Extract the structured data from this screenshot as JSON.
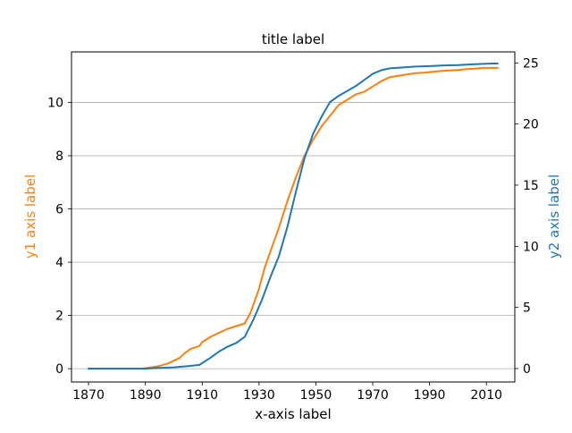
{
  "chart_data": {
    "type": "line",
    "title": "title label",
    "xlabel": "x-axis label",
    "ylabel_left": "y1 axis label",
    "ylabel_right": "y2 axis label",
    "xlim": [
      1864,
      2020
    ],
    "ylim_left": [
      -0.5,
      11.9
    ],
    "ylim_right": [
      -1.1,
      25.9
    ],
    "xticks": [
      1870,
      1890,
      1910,
      1930,
      1950,
      1970,
      1990,
      2010
    ],
    "yticks_left": [
      0,
      2,
      4,
      6,
      8,
      10
    ],
    "yticks_right": [
      0,
      5,
      10,
      15,
      20,
      25
    ],
    "grid": "horizontal lines at left y-axis ticks",
    "colors": {
      "left_series": "#ff7f0e",
      "right_series": "#1f77b4",
      "grid": "#b0b0b0"
    },
    "series": [
      {
        "axis": "left",
        "x": [
          1870,
          1880,
          1889,
          1892,
          1895,
          1898,
          1900,
          1902,
          1904,
          1906,
          1909,
          1910,
          1913,
          1916,
          1919,
          1922,
          1925,
          1927,
          1930,
          1932,
          1935,
          1937,
          1940,
          1943,
          1946,
          1949,
          1952,
          1955,
          1958,
          1961,
          1964,
          1967,
          1970,
          1973,
          1976,
          1979,
          1982,
          1985,
          1988,
          1991,
          1994,
          1997,
          2000,
          2003,
          2006,
          2009,
          2012,
          2014
        ],
        "y": [
          0.0,
          0.0,
          0.0,
          0.05,
          0.1,
          0.2,
          0.3,
          0.4,
          0.6,
          0.75,
          0.85,
          1.0,
          1.2,
          1.35,
          1.5,
          1.6,
          1.7,
          2.1,
          3.0,
          3.8,
          4.7,
          5.3,
          6.3,
          7.2,
          8.0,
          8.6,
          9.1,
          9.5,
          9.9,
          10.1,
          10.3,
          10.4,
          10.6,
          10.8,
          10.95,
          11.0,
          11.05,
          11.1,
          11.12,
          11.15,
          11.18,
          11.2,
          11.22,
          11.25,
          11.27,
          11.3,
          11.3,
          11.3
        ]
      },
      {
        "axis": "right",
        "x": [
          1870,
          1880,
          1890,
          1895,
          1900,
          1905,
          1909,
          1911,
          1913,
          1916,
          1919,
          1922,
          1925,
          1928,
          1931,
          1934,
          1937,
          1940,
          1943,
          1946,
          1949,
          1952,
          1955,
          1958,
          1961,
          1964,
          1967,
          1970,
          1973,
          1976,
          1979,
          1982,
          1985,
          1988,
          1991,
          1994,
          1997,
          2000,
          2003,
          2006,
          2009,
          2012,
          2014
        ],
        "y": [
          0.0,
          0.0,
          0.0,
          0.05,
          0.1,
          0.2,
          0.3,
          0.6,
          0.9,
          1.4,
          1.8,
          2.1,
          2.6,
          4.0,
          5.6,
          7.5,
          9.2,
          11.6,
          14.5,
          17.2,
          19.2,
          20.6,
          21.8,
          22.3,
          22.7,
          23.1,
          23.6,
          24.1,
          24.4,
          24.55,
          24.6,
          24.65,
          24.7,
          24.72,
          24.75,
          24.78,
          24.8,
          24.82,
          24.85,
          24.9,
          24.92,
          24.95,
          24.95
        ]
      }
    ]
  }
}
